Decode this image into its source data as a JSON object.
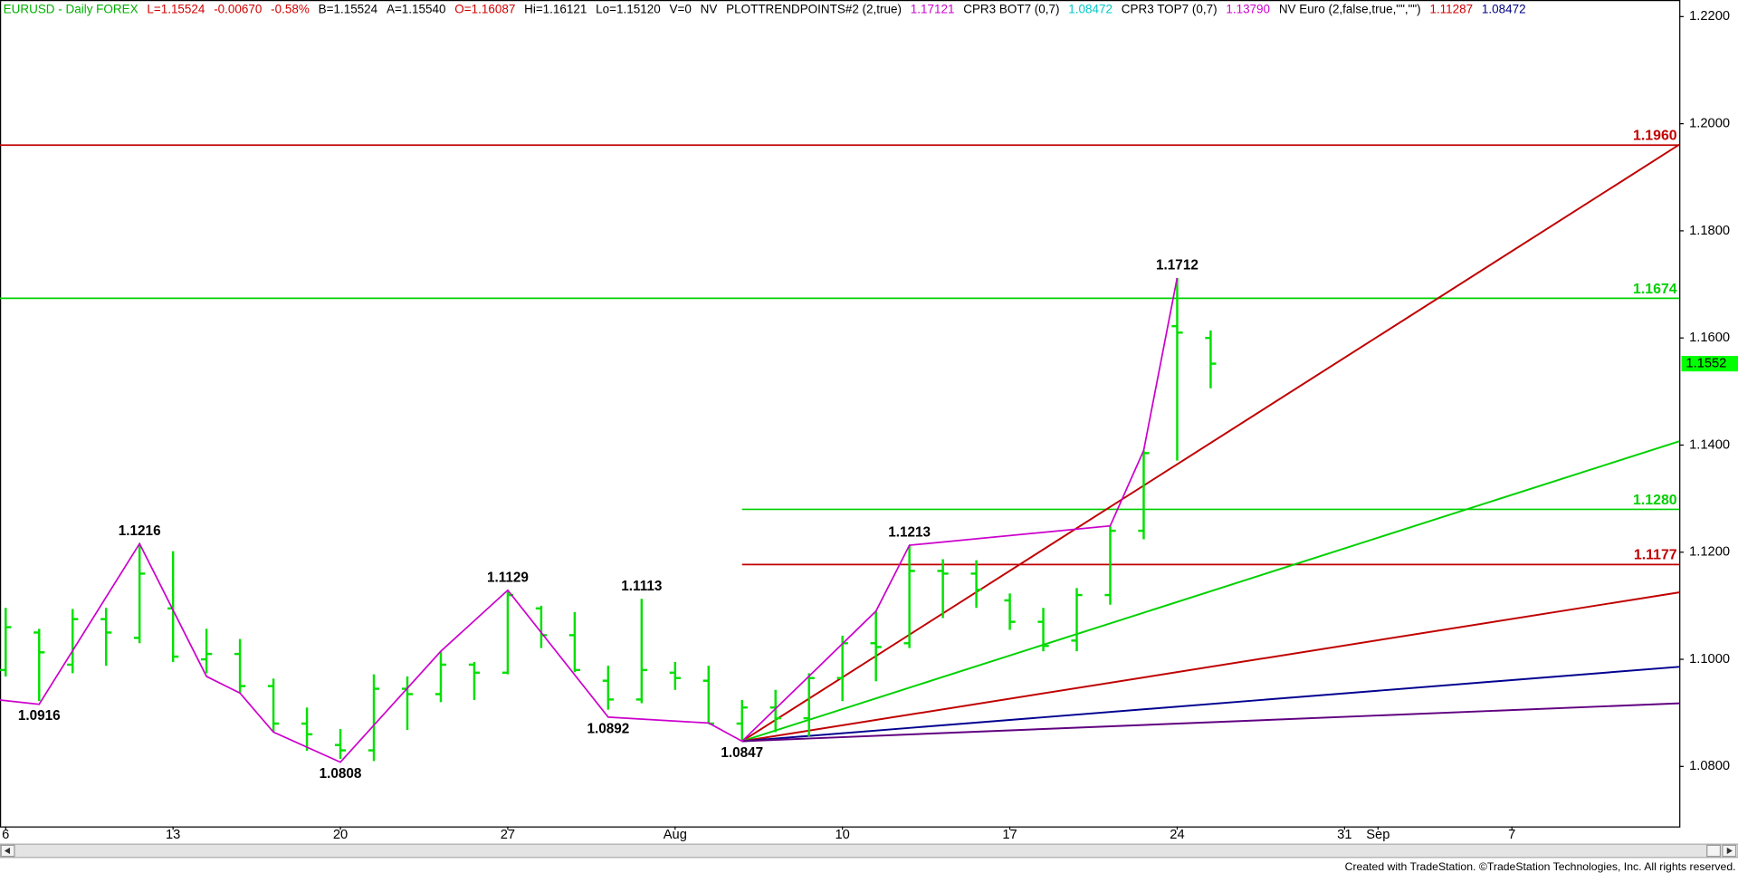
{
  "chart_data": {
    "type": "ohlc",
    "header": [
      {
        "text": "EURUSD - Daily  FOREX",
        "color": "#00b000"
      },
      {
        "text": "L=1.15524",
        "color": "#d00000"
      },
      {
        "text": "-0.00670",
        "color": "#d00000"
      },
      {
        "text": "-0.58%",
        "color": "#d00000"
      },
      {
        "text": "B=1.15524",
        "color": "#000000"
      },
      {
        "text": "A=1.15540",
        "color": "#000000"
      },
      {
        "text": "O=1.16087",
        "color": "#d00000"
      },
      {
        "text": "Hi=1.16121",
        "color": "#000000"
      },
      {
        "text": "Lo=1.15120",
        "color": "#000000"
      },
      {
        "text": "V=0",
        "color": "#000000"
      },
      {
        "text": "NV",
        "color": "#000000"
      },
      {
        "text": "PLOTTRENDPOINTS#2 (2,true)",
        "color": "#000000"
      },
      {
        "text": "1.17121",
        "color": "#cc00cc"
      },
      {
        "text": "CPR3 BOT7 (0,7)",
        "color": "#000000"
      },
      {
        "text": "1.08472",
        "color": "#00c8c8"
      },
      {
        "text": "CPR3 TOP7 (0,7)",
        "color": "#000000"
      },
      {
        "text": "1.13790",
        "color": "#cc00cc"
      },
      {
        "text": "NV Euro (2,false,true,\"\",\"\")",
        "color": "#000000"
      },
      {
        "text": "1.11287",
        "color": "#d00000"
      },
      {
        "text": "1.08472",
        "color": "#000080"
      }
    ],
    "xlim": [
      -0.17,
      50
    ],
    "ylim": [
      1.0688,
      1.2231
    ],
    "xticks": [
      {
        "value": 0,
        "label": "6"
      },
      {
        "value": 5,
        "label": "13"
      },
      {
        "value": 10,
        "label": "20"
      },
      {
        "value": 15,
        "label": "27"
      },
      {
        "value": 20,
        "label": "Aug"
      },
      {
        "value": 25,
        "label": "10"
      },
      {
        "value": 30,
        "label": "17"
      },
      {
        "value": 35,
        "label": "24"
      },
      {
        "value": 40,
        "label": "31"
      },
      {
        "value": 41,
        "label": "Sep"
      },
      {
        "value": 45,
        "label": "7"
      }
    ],
    "yticks": [
      {
        "value": 1.08,
        "label": "1.0800"
      },
      {
        "value": 1.1,
        "label": "1.1000"
      },
      {
        "value": 1.12,
        "label": "1.1200"
      },
      {
        "value": 1.14,
        "label": "1.1400"
      },
      {
        "value": 1.16,
        "label": "1.1600"
      },
      {
        "value": 1.18,
        "label": "1.1800"
      },
      {
        "value": 1.2,
        "label": "1.2000"
      },
      {
        "value": 1.22,
        "label": "1.2200"
      }
    ],
    "color": "#00e000",
    "x": [
      0,
      1,
      2,
      3,
      4,
      5,
      6,
      7,
      8,
      9,
      10,
      11,
      12,
      13,
      14,
      15,
      16,
      17,
      18,
      19,
      20,
      21,
      22,
      23,
      24,
      25,
      26,
      27,
      28,
      29,
      30,
      31,
      32,
      33,
      34,
      35,
      36
    ],
    "open": [
      1.098,
      1.105,
      1.099,
      1.1075,
      1.104,
      1.1095,
      1.1,
      1.101,
      1.095,
      1.088,
      1.084,
      1.083,
      1.0945,
      1.0935,
      1.099,
      1.0975,
      1.1095,
      1.1045,
      1.096,
      1.0925,
      1.0975,
      1.096,
      1.088,
      1.091,
      1.089,
      1.0965,
      1.103,
      1.103,
      1.1165,
      1.116,
      1.111,
      1.107,
      1.1035,
      1.112,
      1.124,
      1.1622,
      1.16
    ],
    "high": [
      1.1096,
      1.1057,
      1.1094,
      1.1096,
      1.1216,
      1.1202,
      1.1057,
      1.1038,
      1.0964,
      1.091,
      1.087,
      1.0972,
      1.0968,
      1.1015,
      1.0995,
      1.1129,
      1.11,
      1.1088,
      1.0988,
      1.1113,
      1.0995,
      1.0988,
      1.0924,
      1.0943,
      1.0974,
      1.1044,
      1.109,
      1.1213,
      1.1187,
      1.1185,
      1.1123,
      1.1096,
      1.1133,
      1.1249,
      1.139,
      1.1712,
      1.1614
    ],
    "low": [
      1.0968,
      1.0922,
      1.0974,
      1.0988,
      1.103,
      1.0995,
      1.0974,
      1.0937,
      1.0864,
      1.0829,
      1.0814,
      1.081,
      1.0868,
      1.092,
      1.0924,
      1.0972,
      1.1021,
      1.0976,
      1.0906,
      1.0918,
      1.0943,
      1.0881,
      1.0847,
      1.0864,
      1.0856,
      1.0922,
      1.0959,
      1.1021,
      1.1077,
      1.1096,
      1.1055,
      1.1015,
      1.1015,
      1.1102,
      1.1224,
      1.1371,
      1.1506
    ],
    "close": [
      1.106,
      1.1013,
      1.1075,
      1.105,
      1.116,
      1.1005,
      1.101,
      1.095,
      1.088,
      1.086,
      1.083,
      1.0945,
      1.0935,
      1.099,
      1.0975,
      1.112,
      1.1045,
      1.098,
      1.0925,
      1.098,
      1.0965,
      1.088,
      1.091,
      1.089,
      1.0965,
      1.103,
      1.1023,
      1.1165,
      1.116,
      1.113,
      1.107,
      1.1025,
      1.112,
      1.124,
      1.1385,
      1.161,
      1.1552
    ],
    "swing": {
      "color": "#cc00cc",
      "x": [
        -0.17,
        1,
        4,
        6,
        7,
        8,
        10,
        13,
        15,
        18,
        21,
        22,
        26,
        27,
        33,
        34,
        35
      ],
      "values": [
        1.0924,
        1.0916,
        1.1216,
        1.0968,
        1.0937,
        1.0864,
        1.0808,
        1.1015,
        1.1129,
        1.0892,
        1.0881,
        1.0847,
        1.109,
        1.1213,
        1.1249,
        1.139,
        1.1712
      ]
    },
    "lines": [
      {
        "color": "#c00000",
        "x": [
          22,
          50
        ],
        "values": [
          1.0847,
          1.1961
        ]
      },
      {
        "color": "#00d000",
        "x": [
          22,
          50
        ],
        "values": [
          1.0847,
          1.1407
        ]
      },
      {
        "color": "#c00000",
        "x": [
          22,
          50
        ],
        "values": [
          1.0847,
          1.1125
        ]
      },
      {
        "color": "#000090",
        "x": [
          22,
          50
        ],
        "values": [
          1.0847,
          1.0986
        ]
      },
      {
        "color": "#600080",
        "x": [
          22,
          50
        ],
        "values": [
          1.0847,
          1.0918
        ]
      }
    ],
    "levels": [
      {
        "value": 1.196,
        "label": "1.1960",
        "color": "#c00000"
      },
      {
        "value": 1.1674,
        "label": "1.1674",
        "color": "#00d000"
      },
      {
        "value": 1.128,
        "label": "1.1280",
        "color": "#00d000",
        "from": 22
      },
      {
        "value": 1.1177,
        "label": "1.1177",
        "color": "#c00000",
        "from": 22
      }
    ],
    "annotations": [
      {
        "x": 1,
        "value": 1.0916,
        "label": "1.0916",
        "pos": "below"
      },
      {
        "x": 4,
        "value": 1.1216,
        "label": "1.1216",
        "pos": "above"
      },
      {
        "x": 10,
        "value": 1.0808,
        "label": "1.0808",
        "pos": "below"
      },
      {
        "x": 15,
        "value": 1.1129,
        "label": "1.1129",
        "pos": "above"
      },
      {
        "x": 18,
        "value": 1.0892,
        "label": "1.0892",
        "pos": "below"
      },
      {
        "x": 19,
        "value": 1.1113,
        "label": "1.1113",
        "pos": "above"
      },
      {
        "x": 22,
        "value": 1.0847,
        "label": "1.0847",
        "pos": "below"
      },
      {
        "x": 27,
        "value": 1.1213,
        "label": "1.1213",
        "pos": "above"
      },
      {
        "x": 35,
        "value": 1.1712,
        "label": "1.1712",
        "pos": "above"
      }
    ],
    "last_price": {
      "value": 1.1552,
      "label": "1.1552",
      "color": "#00ff00"
    }
  },
  "footer": "Created with TradeStation. ©TradeStation Technologies, Inc. All rights reserved."
}
